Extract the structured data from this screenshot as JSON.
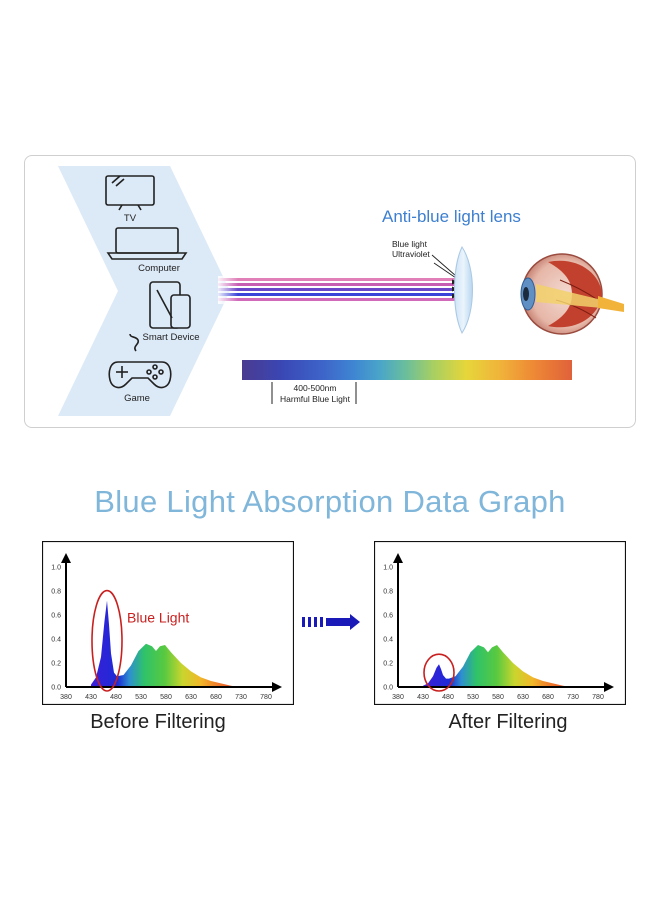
{
  "diagram": {
    "devices": [
      {
        "label": "TV",
        "icon": "tv-icon"
      },
      {
        "label": "Computer",
        "icon": "laptop-icon"
      },
      {
        "label": "Smart Device",
        "icon": "tablet-phone-icon"
      },
      {
        "label": "Game",
        "icon": "gamepad-icon"
      }
    ],
    "lens_title": "Anti-blue light lens",
    "ray_labels": [
      "Blue light",
      "Ultraviolet"
    ],
    "spectrum_range": "400-500nm",
    "spectrum_desc": "Harmful Blue Light"
  },
  "section_title": "Blue Light Absorption Data Graph",
  "chart_data": [
    {
      "type": "area",
      "caption": "Before Filtering",
      "annotation": "Blue Light",
      "x_ticks": [
        "380",
        "430",
        "480",
        "530",
        "580",
        "630",
        "680",
        "730",
        "780"
      ],
      "y_ticks": [
        "0.0",
        "0.2",
        "0.4",
        "0.6",
        "0.8",
        "1.0"
      ],
      "xlim": [
        380,
        780
      ],
      "ylim": [
        0,
        1.0
      ],
      "x": [
        430,
        440,
        450,
        457,
        462,
        466,
        470,
        476,
        482,
        495,
        510,
        525,
        540,
        552,
        560,
        568,
        578,
        590,
        610,
        630,
        650,
        670,
        690,
        710,
        725
      ],
      "y": [
        0.02,
        0.08,
        0.25,
        0.55,
        0.72,
        0.52,
        0.28,
        0.12,
        0.09,
        0.1,
        0.18,
        0.3,
        0.36,
        0.34,
        0.3,
        0.34,
        0.35,
        0.29,
        0.2,
        0.13,
        0.08,
        0.05,
        0.03,
        0.01,
        0.0
      ]
    },
    {
      "type": "area",
      "caption": "After Filtering",
      "annotation": "",
      "x_ticks": [
        "380",
        "430",
        "480",
        "530",
        "580",
        "630",
        "680",
        "730",
        "780"
      ],
      "y_ticks": [
        "0.0",
        "0.2",
        "0.4",
        "0.6",
        "0.8",
        "1.0"
      ],
      "xlim": [
        380,
        780
      ],
      "ylim": [
        0,
        1.0
      ],
      "x": [
        430,
        440,
        450,
        457,
        462,
        466,
        470,
        476,
        482,
        495,
        510,
        525,
        540,
        552,
        560,
        568,
        578,
        590,
        610,
        630,
        650,
        670,
        690,
        710,
        725
      ],
      "y": [
        0.01,
        0.03,
        0.09,
        0.16,
        0.19,
        0.15,
        0.1,
        0.07,
        0.07,
        0.09,
        0.17,
        0.29,
        0.35,
        0.33,
        0.29,
        0.33,
        0.35,
        0.29,
        0.2,
        0.13,
        0.08,
        0.05,
        0.03,
        0.01,
        0.0
      ]
    }
  ]
}
